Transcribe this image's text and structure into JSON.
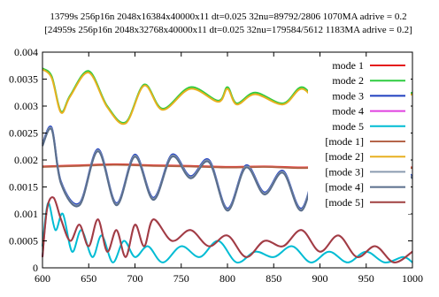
{
  "chart_data": {
    "type": "line",
    "title": "13799s 256p16n 2048x16384x40000x11  dt=0.025 32nu=89792/2806 1070MA adrive = 0.2",
    "subtitle": "[24959s 256p16n 2048x32768x40000x11  dt=0.025 32nu=179584/5612 1183MA adrive = 0.2]",
    "xlabel": "",
    "ylabel": "",
    "xlim": [
      600,
      1000
    ],
    "ylim": [
      0,
      0.004
    ],
    "xticks": [
      600,
      650,
      700,
      750,
      800,
      850,
      900,
      950,
      1000
    ],
    "xtick_labels": [
      "600",
      "650",
      "700",
      "750",
      "800",
      "850",
      "900",
      "950",
      "1000"
    ],
    "yticks": [
      0,
      0.0005,
      0.001,
      0.0015,
      0.002,
      0.0025,
      0.003,
      0.0035,
      0.004
    ],
    "ytick_labels": [
      "0",
      "0.0005",
      "0.001",
      "0.0015",
      "0.002",
      "0.0025",
      "0.003",
      "0.0035",
      "0.004"
    ],
    "grid": false,
    "legend_position": "top-right",
    "series": [
      {
        "name": "mode 1",
        "color": "#e41a1c",
        "x": [
          600,
          640,
          680,
          720,
          760,
          800,
          840,
          880,
          920,
          960,
          1000
        ],
        "y": [
          0.00188,
          0.0019,
          0.00192,
          0.0019,
          0.00189,
          0.00187,
          0.00188,
          0.00186,
          0.00188,
          0.00187,
          0.00186
        ]
      },
      {
        "name": "mode 2",
        "color": "#2ecc40",
        "x": [
          600,
          610,
          620,
          630,
          650,
          670,
          690,
          710,
          730,
          760,
          790,
          800,
          810,
          830,
          860,
          880,
          900,
          930,
          960,
          980,
          1000
        ],
        "y": [
          0.0037,
          0.00355,
          0.0029,
          0.0032,
          0.00365,
          0.003,
          0.0027,
          0.0034,
          0.00295,
          0.00335,
          0.0031,
          0.00335,
          0.00305,
          0.00325,
          0.00305,
          0.00335,
          0.0031,
          0.0033,
          0.0032,
          0.00315,
          0.00325
        ]
      },
      {
        "name": "mode 3",
        "color": "#1f3fbf",
        "x": [
          600,
          610,
          620,
          640,
          660,
          680,
          700,
          720,
          740,
          760,
          780,
          800,
          820,
          840,
          860,
          880,
          900,
          920,
          940,
          960,
          980,
          1000
        ],
        "y": [
          0.0023,
          0.0026,
          0.0016,
          0.0012,
          0.0022,
          0.0012,
          0.0021,
          0.0013,
          0.0021,
          0.0017,
          0.002,
          0.0011,
          0.0019,
          0.0014,
          0.0018,
          0.0011,
          0.002,
          0.0013,
          0.0019,
          0.0016,
          0.0019,
          0.0017
        ]
      },
      {
        "name": "mode 4",
        "color": "#e040e0",
        "x": [
          600,
          605,
          612,
          620,
          630,
          640,
          650,
          660,
          670,
          680,
          690,
          700,
          710,
          720,
          740,
          760,
          780,
          800,
          820,
          840,
          860,
          880,
          900,
          920,
          940,
          960,
          980,
          1000
        ],
        "y": [
          0.0002,
          0.0011,
          0.0013,
          0.0009,
          0.0005,
          0.0008,
          0.0004,
          0.0009,
          0.0003,
          0.0007,
          0.0002,
          0.0008,
          0.0004,
          0.0009,
          0.0005,
          0.0007,
          0.0004,
          0.0006,
          0.0002,
          0.0005,
          0.0004,
          0.0007,
          0.0003,
          0.0006,
          0.0002,
          0.0004,
          0.0001,
          0.0003
        ]
      },
      {
        "name": "mode 5",
        "color": "#00bcd4",
        "x": [
          600,
          606,
          614,
          622,
          632,
          642,
          654,
          664,
          676,
          688,
          700,
          714,
          730,
          750,
          770,
          790,
          810,
          830,
          850,
          870,
          890,
          910,
          930,
          950,
          970,
          990,
          1000
        ],
        "y": [
          0.0004,
          0.0012,
          0.0007,
          0.001,
          0.0003,
          0.0007,
          0.0002,
          0.0006,
          0.0001,
          0.0005,
          0.0002,
          0.0004,
          0.0001,
          0.0004,
          0.0002,
          0.0005,
          0.0001,
          0.0003,
          0.0002,
          0.0004,
          0.0001,
          0.0003,
          0.0001,
          0.0003,
          0.0001,
          0.0002,
          0.0001
        ]
      },
      {
        "name": "[mode 1]",
        "color": "#b5654a",
        "x": [
          600,
          640,
          680,
          720,
          760,
          800,
          840,
          880,
          920,
          960,
          1000
        ],
        "y": [
          0.00187,
          0.00189,
          0.00191,
          0.00189,
          0.00188,
          0.00186,
          0.00187,
          0.00185,
          0.00187,
          0.00186,
          0.00185
        ]
      },
      {
        "name": "[mode 2]",
        "color": "#e8b020",
        "x": [
          600,
          610,
          620,
          630,
          650,
          670,
          690,
          710,
          730,
          760,
          790,
          800,
          810,
          830,
          860,
          880,
          900,
          930,
          960,
          980,
          1000
        ],
        "y": [
          0.00368,
          0.00352,
          0.00288,
          0.00318,
          0.00362,
          0.00298,
          0.00268,
          0.00338,
          0.00293,
          0.00332,
          0.00308,
          0.00332,
          0.00303,
          0.00322,
          0.00303,
          0.00332,
          0.00308,
          0.00328,
          0.00318,
          0.00313,
          0.00322
        ]
      },
      {
        "name": "[mode 3]",
        "color": "#8a9bb0",
        "x": [
          600,
          610,
          620,
          640,
          660,
          680,
          700,
          720,
          740,
          760,
          780,
          800,
          820,
          840,
          860,
          880,
          900,
          920,
          940,
          960,
          980,
          1000
        ],
        "y": [
          0.00228,
          0.00258,
          0.00158,
          0.00118,
          0.00218,
          0.00118,
          0.00208,
          0.00128,
          0.00208,
          0.00168,
          0.00198,
          0.00108,
          0.00188,
          0.00138,
          0.00178,
          0.00108,
          0.00198,
          0.00128,
          0.00188,
          0.00158,
          0.00188,
          0.00168
        ]
      },
      {
        "name": "[mode 4]",
        "color": "#5a6e8c",
        "x": [
          600,
          610,
          620,
          640,
          660,
          680,
          700,
          720,
          740,
          760,
          780,
          800,
          820,
          840,
          860,
          880,
          900,
          920,
          940,
          960,
          980,
          1000
        ],
        "y": [
          0.00226,
          0.00256,
          0.00156,
          0.00116,
          0.00216,
          0.00116,
          0.00206,
          0.00126,
          0.00206,
          0.00166,
          0.00196,
          0.00106,
          0.00186,
          0.00136,
          0.00176,
          0.00106,
          0.00196,
          0.00126,
          0.00186,
          0.00156,
          0.00186,
          0.00166
        ]
      },
      {
        "name": "[mode 5]",
        "color": "#a04040",
        "x": [
          600,
          605,
          612,
          620,
          630,
          640,
          650,
          660,
          670,
          680,
          690,
          700,
          710,
          720,
          740,
          760,
          780,
          800,
          820,
          840,
          860,
          880,
          900,
          920,
          940,
          960,
          980,
          1000
        ],
        "y": [
          0.0002,
          0.0011,
          0.0013,
          0.0009,
          0.0005,
          0.0008,
          0.0004,
          0.0009,
          0.0003,
          0.0007,
          0.0002,
          0.0008,
          0.0004,
          0.0009,
          0.0005,
          0.0007,
          0.0004,
          0.0006,
          0.0002,
          0.0005,
          0.0004,
          0.0007,
          0.0003,
          0.0006,
          0.0002,
          0.0004,
          0.0001,
          0.0003
        ]
      }
    ]
  }
}
